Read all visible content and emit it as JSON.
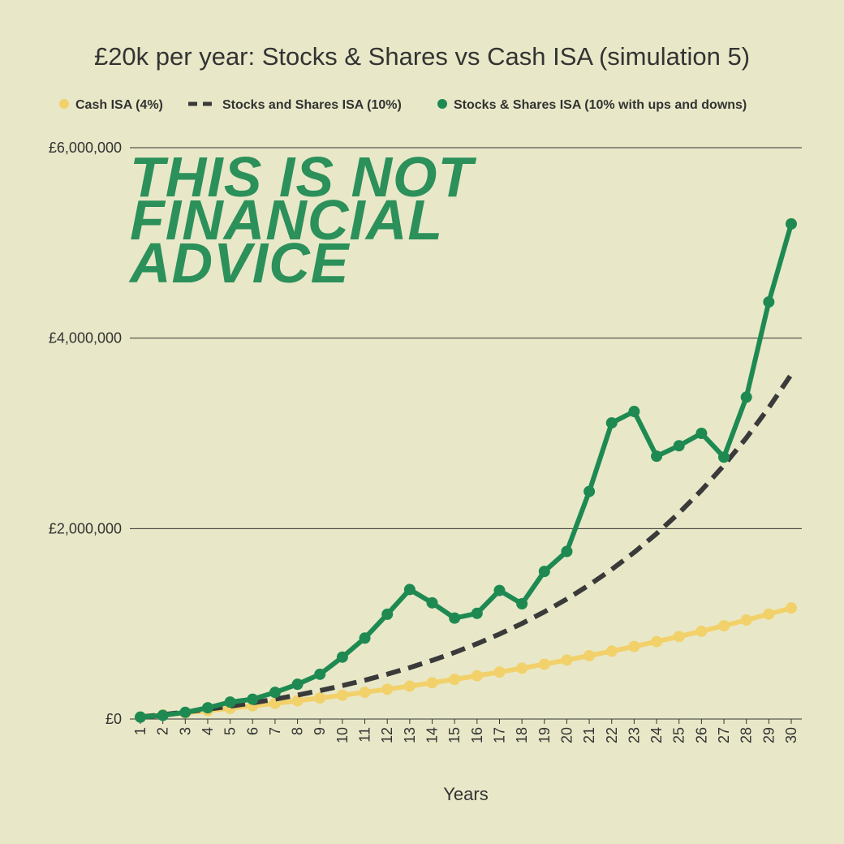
{
  "chart_data": {
    "type": "line",
    "title": "£20k per year: Stocks & Shares vs Cash ISA (simulation 5)",
    "xlabel": "Years",
    "ylabel": "",
    "x": [
      1,
      2,
      3,
      4,
      5,
      6,
      7,
      8,
      9,
      10,
      11,
      12,
      13,
      14,
      15,
      16,
      17,
      18,
      19,
      20,
      21,
      22,
      23,
      24,
      25,
      26,
      27,
      28,
      29,
      30
    ],
    "ylim": [
      0,
      6000000
    ],
    "y_ticks": [
      0,
      2000000,
      4000000,
      6000000
    ],
    "y_tick_labels": [
      "£0",
      "£2,000,000",
      "£4,000,000",
      "£6,000,000"
    ],
    "grid": true,
    "legend_position": "top",
    "series": [
      {
        "name": "Cash ISA (4%)",
        "style": "line-markers",
        "color": "#f2d16b",
        "values": [
          20800,
          42432,
          64929,
          88326,
          112659,
          137965,
          164284,
          191655,
          220121,
          249726,
          280516,
          312536,
          345838,
          380471,
          416490,
          453950,
          492908,
          533424,
          575561,
          619383,
          664958,
          712357,
          761651,
          812917,
          866234,
          921683,
          979350,
          1039324,
          1101697,
          1166565
        ]
      },
      {
        "name": "Stocks and Shares ISA (10%)",
        "style": "dashed",
        "color": "#3a3a3a",
        "values": [
          22000,
          46200,
          72820,
          102102,
          134312,
          169743,
          208718,
          251590,
          298748,
          350623,
          407686,
          470454,
          539500,
          615450,
          698995,
          790894,
          891984,
          1003182,
          1125500,
          1260050,
          1408055,
          1570860,
          1749946,
          1946941,
          2163635,
          2401998,
          2664198,
          2952618,
          3269880,
          3618868
        ]
      },
      {
        "name": "Stocks & Shares ISA (10% with ups and downs)",
        "style": "line-markers",
        "color": "#1e8a52",
        "values": [
          20000,
          38000,
          70000,
          118000,
          178000,
          208000,
          280000,
          365000,
          470000,
          650000,
          850000,
          1100000,
          1360000,
          1220000,
          1060000,
          1110000,
          1350000,
          1210000,
          1550000,
          1760000,
          2390000,
          3110000,
          3230000,
          2760000,
          2870000,
          3000000,
          2750000,
          3380000,
          4380000,
          5200000
        ]
      }
    ]
  },
  "watermark": {
    "line1": "THIS IS NOT",
    "line2": "FINANCIAL",
    "line3": "ADVICE"
  }
}
